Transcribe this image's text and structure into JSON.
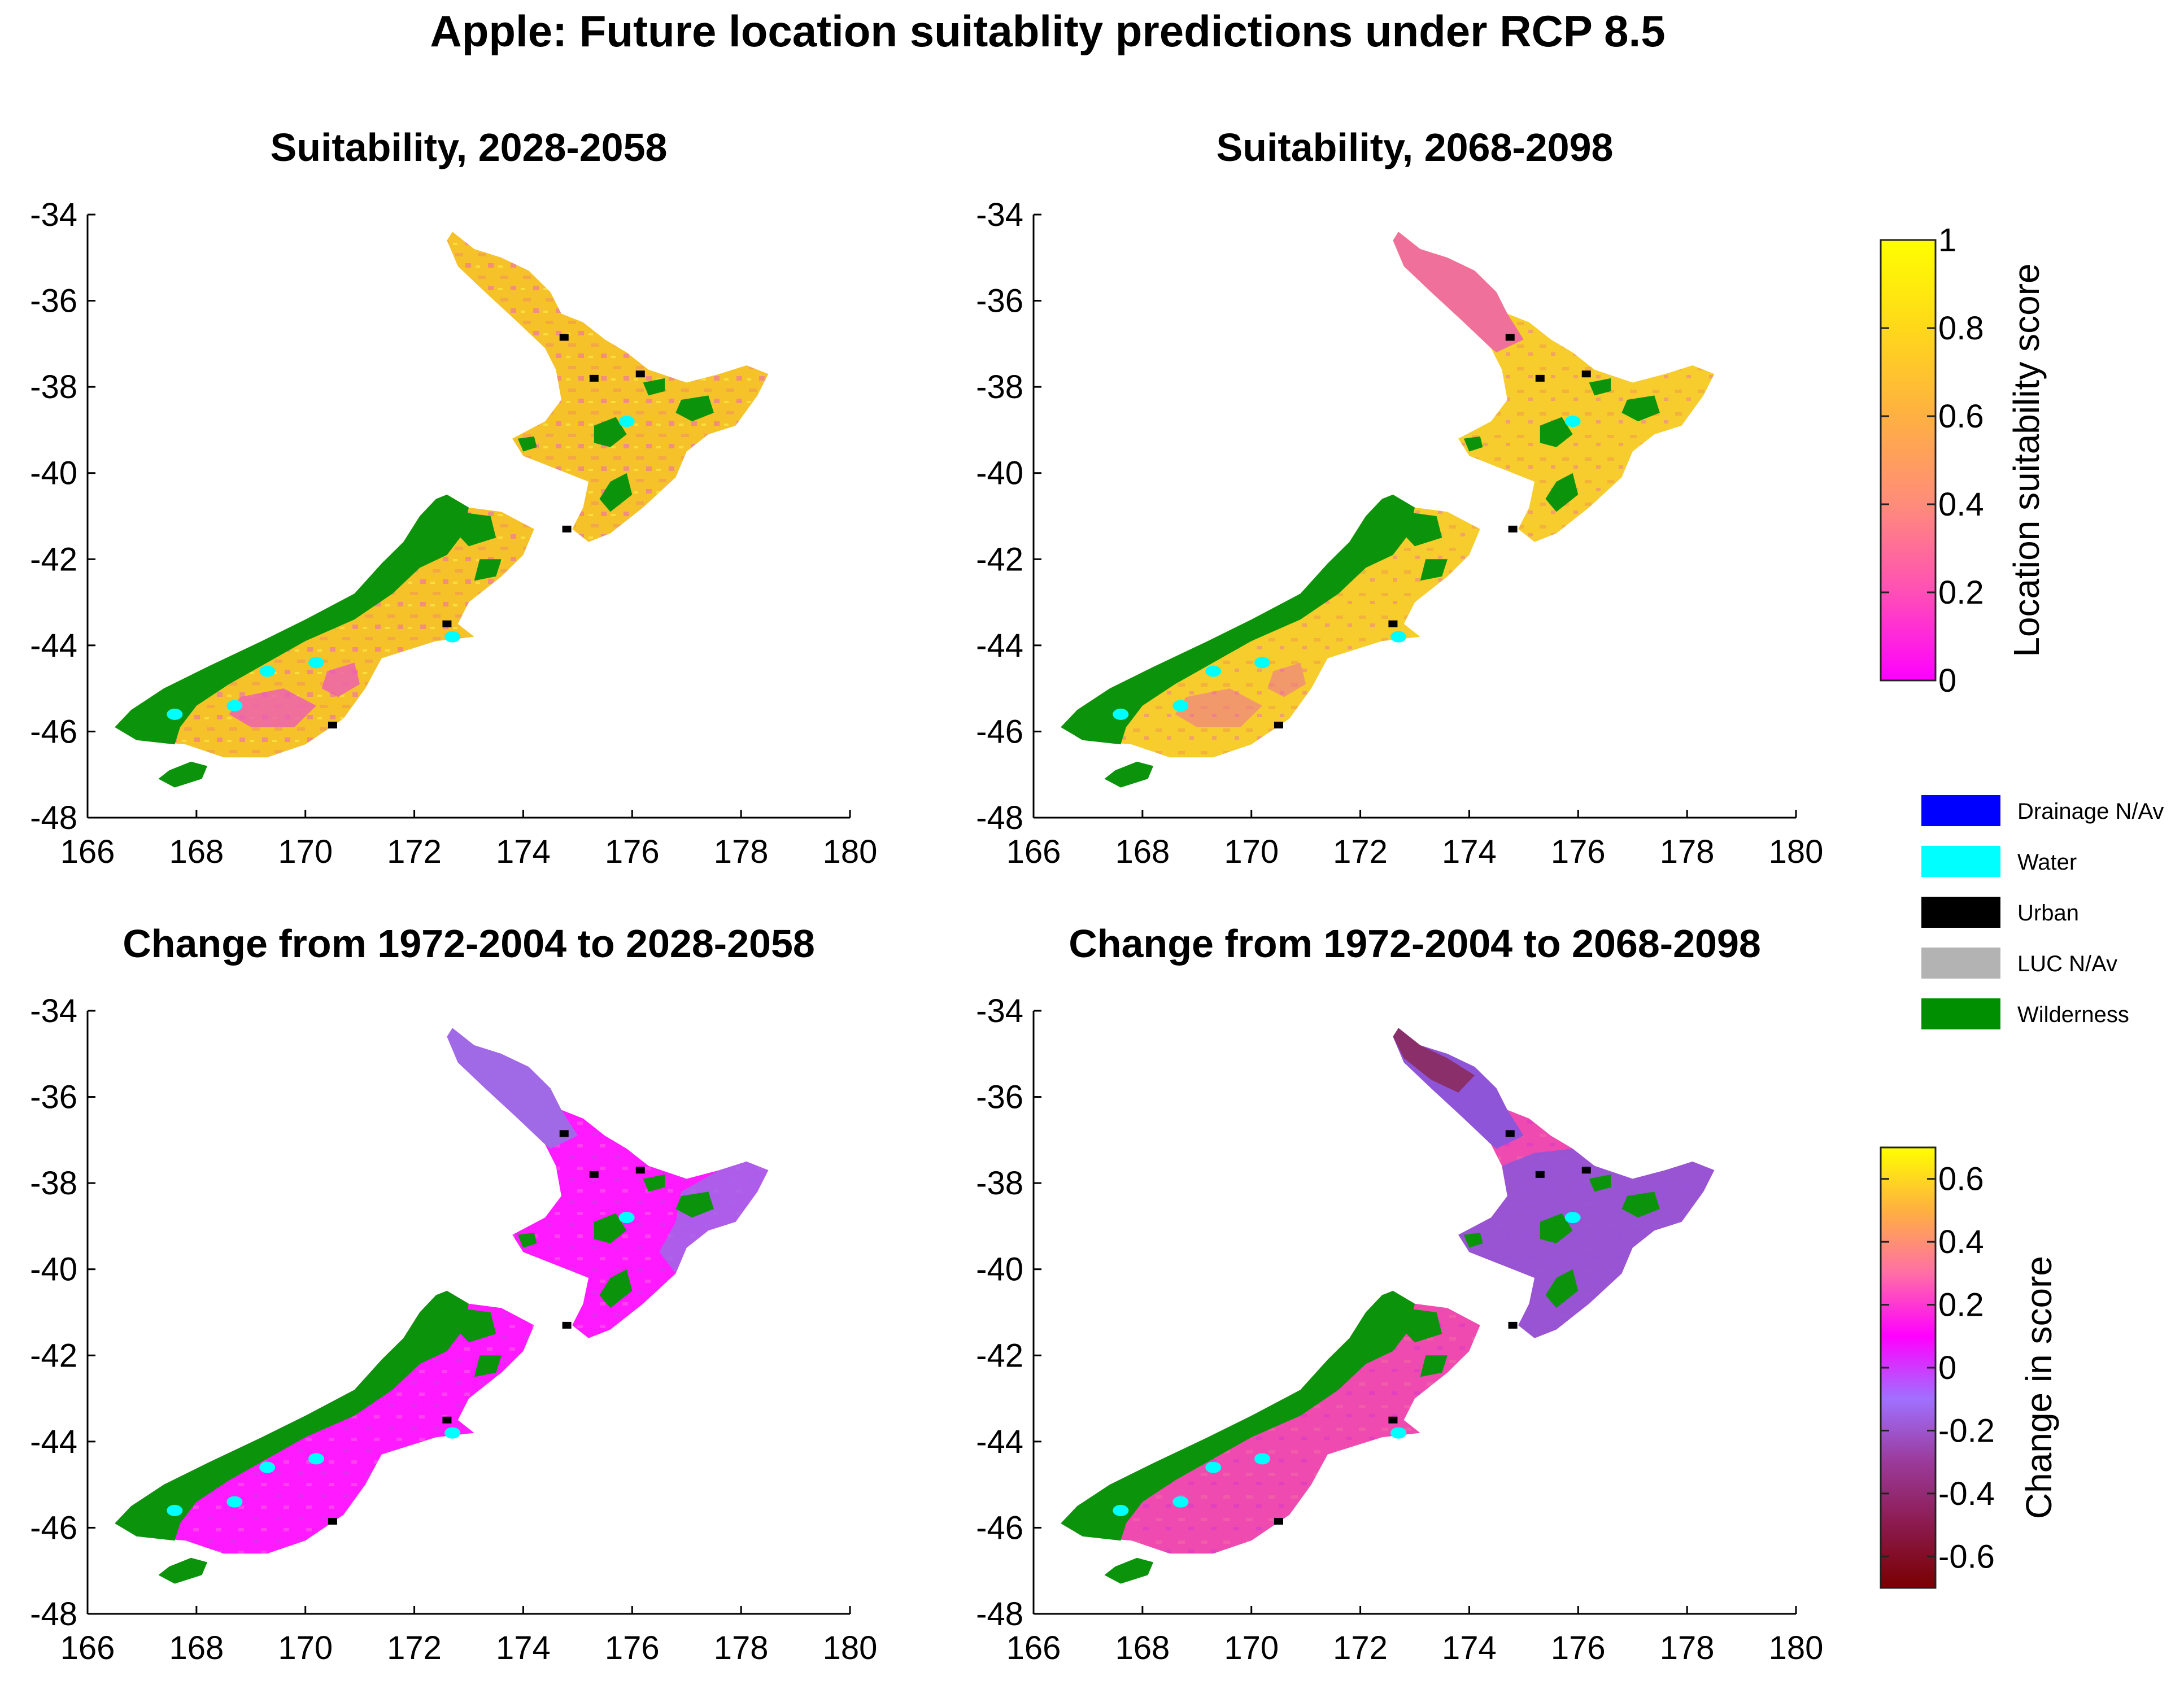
{
  "title": "Apple: Future location suitablity predictions under RCP 8.5",
  "panels": [
    {
      "title": "Suitability, 2028-2058",
      "scheme": "suit"
    },
    {
      "title": "Suitability, 2068-2098",
      "scheme": "suit2"
    },
    {
      "title": "Change from 1972-2004 to 2028-2058",
      "scheme": "change1"
    },
    {
      "title": "Change from 1972-2004 to 2068-2098",
      "scheme": "change2"
    }
  ],
  "axes": {
    "x_ticks": [
      "166",
      "168",
      "170",
      "172",
      "174",
      "176",
      "178",
      "180"
    ],
    "y_ticks": [
      "-34",
      "-36",
      "-38",
      "-40",
      "-42",
      "-44",
      "-46",
      "-48"
    ],
    "xlim": [
      166,
      180
    ],
    "ylim": [
      -48,
      -34
    ]
  },
  "colorbars": {
    "suitability": {
      "label": "Location suitability score",
      "ticks": [
        "1",
        "0.8",
        "0.6",
        "0.4",
        "0.2",
        "0"
      ],
      "range": [
        0,
        1
      ],
      "colors": [
        "#ff00ff",
        "#ff4fb6",
        "#ff8c7a",
        "#ffb042",
        "#ffd81a",
        "#ffff00"
      ]
    },
    "change": {
      "label": "Change in score",
      "ticks": [
        "0.6",
        "0.4",
        "0.2",
        "0",
        "-0.2",
        "-0.4",
        "-0.6"
      ],
      "range": [
        -0.7,
        0.7
      ],
      "colors": [
        "#7a0000",
        "#8b1a4d",
        "#9b3a9b",
        "#a070ff",
        "#ff00ff",
        "#ff6fa6",
        "#ffb040",
        "#ffff00"
      ]
    }
  },
  "legend": [
    {
      "label": "Drainage N/Av",
      "color": "#0000ff"
    },
    {
      "label": "Water",
      "color": "#00ffff"
    },
    {
      "label": "Urban",
      "color": "#000000"
    },
    {
      "label": "LUC N/Av",
      "color": "#b3b3b3"
    },
    {
      "label": "Wilderness",
      "color": "#008f00"
    }
  ],
  "colors": {
    "wilderness": "#0c930c",
    "suit_main": "#f5c22a",
    "suit_alt": "#f2a34a",
    "suit_low": "#ee5bb8",
    "suit2_main": "#f6cd2c",
    "suit2_north": "#f0709c",
    "change1_main": "#ff1aff",
    "change1_north": "#a06ae6",
    "change2_main": "#ef4ab0",
    "change2_north": "#8f55d8",
    "change2_far_north": "#8a2f6a",
    "water": "#00ffff"
  }
}
